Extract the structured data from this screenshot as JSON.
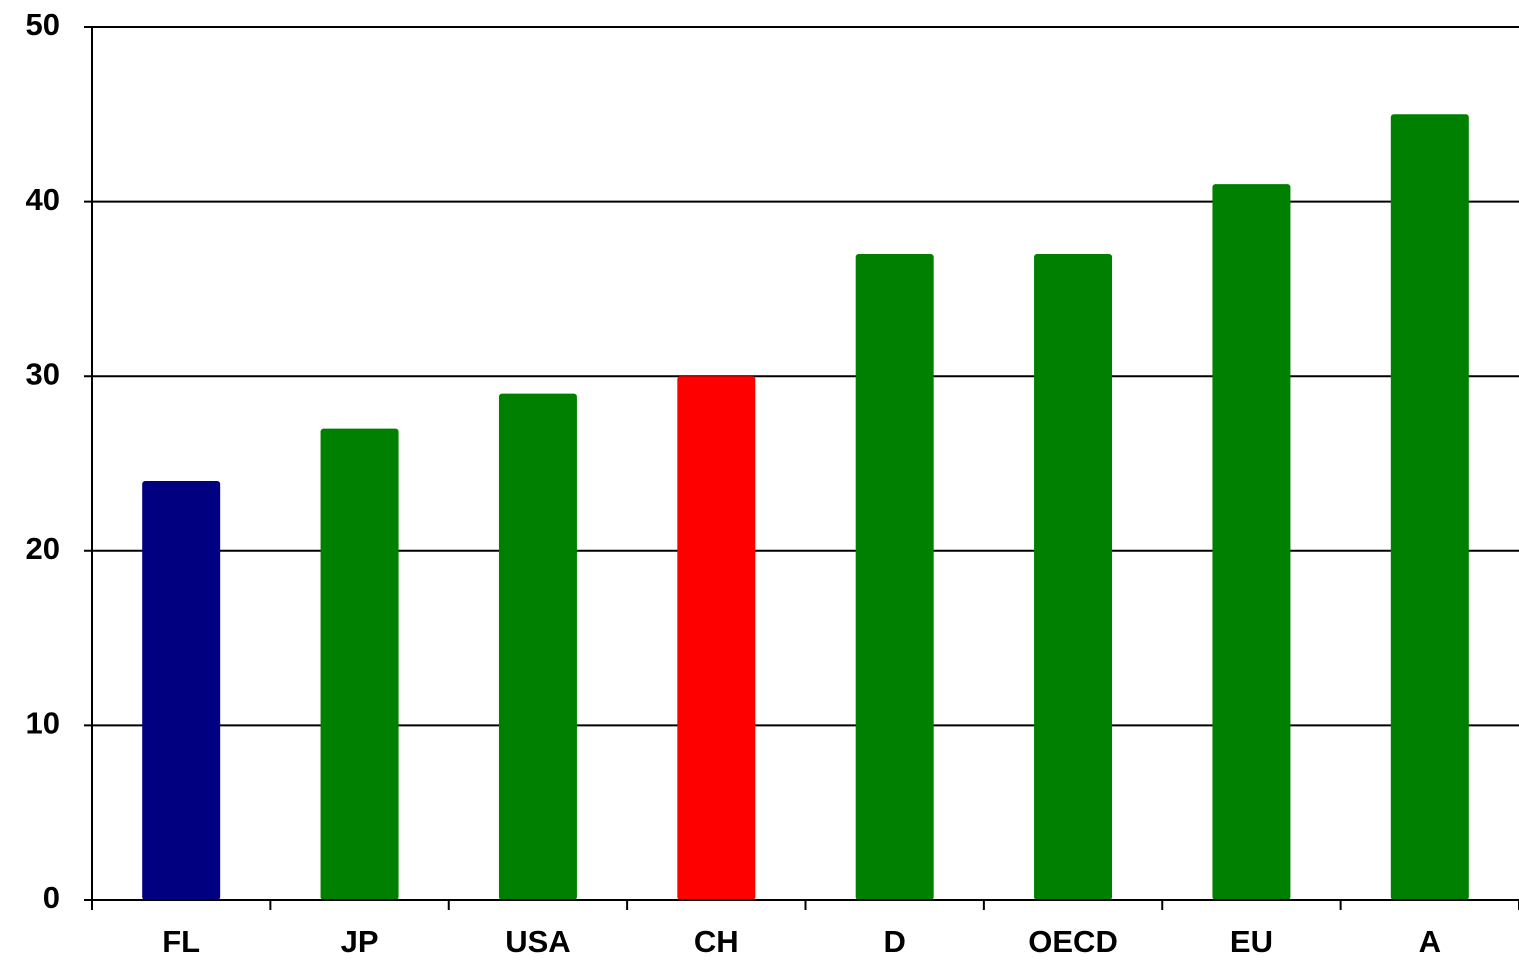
{
  "chart_data": {
    "type": "bar",
    "categories": [
      "FL",
      "JP",
      "USA",
      "CH",
      "D",
      "OECD",
      "EU",
      "A"
    ],
    "values": [
      24,
      27,
      29,
      30,
      37,
      37,
      41,
      45
    ],
    "colors": [
      "#000080",
      "#008000",
      "#008000",
      "#ff0000",
      "#008000",
      "#008000",
      "#008000",
      "#008000"
    ],
    "ylim": [
      0,
      50
    ],
    "yticks": [
      0,
      10,
      20,
      30,
      40,
      50
    ],
    "grid": true
  }
}
